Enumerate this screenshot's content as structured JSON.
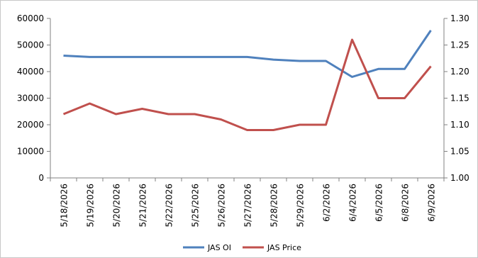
{
  "chart_data": {
    "type": "line",
    "categories": [
      "5/18/2026",
      "5/19/2026",
      "5/20/2026",
      "5/21/2026",
      "5/22/2026",
      "5/25/2026",
      "5/26/2026",
      "5/27/2026",
      "5/28/2026",
      "5/29/2026",
      "6/2/2026",
      "6/4/2026",
      "6/5/2026",
      "6/8/2026",
      "6/9/2026"
    ],
    "series": [
      {
        "name": "JAS OI",
        "axis": "left",
        "color": "#4f81bd",
        "values": [
          46000,
          45500,
          45500,
          45500,
          45500,
          45500,
          45500,
          45500,
          44500,
          44000,
          44000,
          38000,
          41000,
          41000,
          55500
        ]
      },
      {
        "name": "JAS Price",
        "axis": "right",
        "color": "#c0504d",
        "values": [
          1.12,
          1.14,
          1.12,
          1.13,
          1.12,
          1.12,
          1.11,
          1.09,
          1.09,
          1.1,
          1.1,
          1.26,
          1.15,
          1.15,
          1.21
        ]
      }
    ],
    "y_left": {
      "min": 0,
      "max": 60000,
      "ticks": [
        "0",
        "10000",
        "20000",
        "30000",
        "40000",
        "50000",
        "60000"
      ]
    },
    "y_right": {
      "min": 1.0,
      "max": 1.3,
      "ticks": [
        "1.00",
        "1.05",
        "1.10",
        "1.15",
        "1.20",
        "1.25",
        "1.30"
      ]
    },
    "grid": false,
    "legend_position": "bottom"
  }
}
